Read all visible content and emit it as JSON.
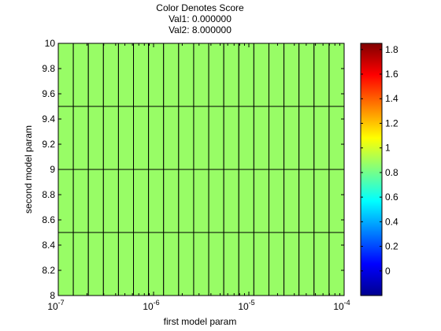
{
  "chart_data": {
    "type": "heatmap",
    "title_lines": [
      "Color Denotes Score",
      "Val1: 0.000000",
      "Val2: 8.000000"
    ],
    "xlabel": "first model param",
    "ylabel": "second model param",
    "x_scale": "log",
    "x_range": [
      1e-07,
      0.0001
    ],
    "x_ticks": [
      {
        "base": "10",
        "exp": "-7"
      },
      {
        "base": "10",
        "exp": "-6"
      },
      {
        "base": "10",
        "exp": "-5"
      },
      {
        "base": "10",
        "exp": "-4"
      }
    ],
    "x_cell_count": 19,
    "y_range": [
      8,
      10
    ],
    "y_ticks": [
      "8",
      "8.2",
      "8.4",
      "8.6",
      "8.8",
      "9",
      "9.2",
      "9.4",
      "9.6",
      "9.8",
      "10"
    ],
    "y_cell_edges": [
      8,
      8.5,
      9,
      9.5,
      10
    ],
    "cell_value": 0.8,
    "cell_color": "#98fd66",
    "colorbar": {
      "colormap": "jet",
      "range": [
        -0.2,
        1.85
      ],
      "ticks": [
        "0",
        "0.2",
        "0.4",
        "0.6",
        "0.8",
        "1",
        "1.2",
        "1.4",
        "1.6",
        "1.8"
      ]
    }
  }
}
